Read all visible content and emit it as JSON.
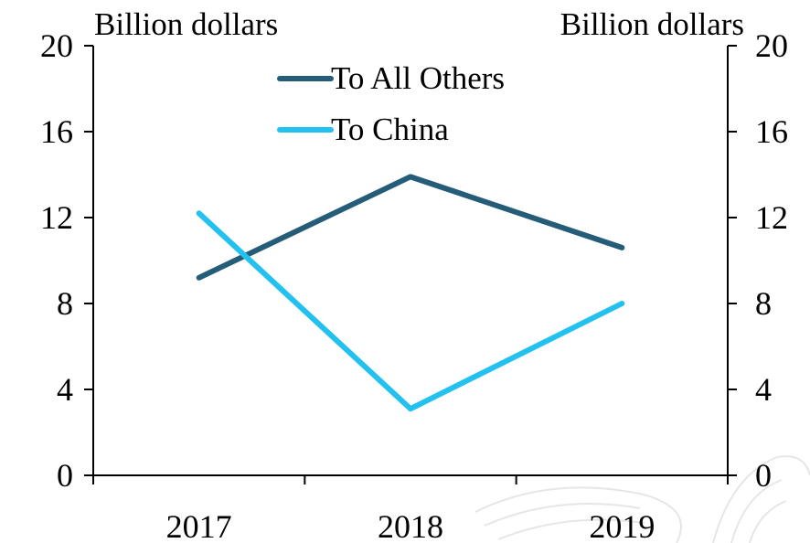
{
  "chart_data": {
    "type": "line",
    "categories": [
      "2017",
      "2018",
      "2019"
    ],
    "series": [
      {
        "name": "To All Others",
        "values": [
          9.2,
          13.9,
          10.6
        ],
        "color": "#255c78"
      },
      {
        "name": "To China",
        "values": [
          12.2,
          3.1,
          8.0
        ],
        "color": "#22c1ef"
      }
    ],
    "left_axis_label": "Billion dollars",
    "right_axis_label": "Billion dollars",
    "ylim": [
      0,
      20
    ],
    "yticks": [
      "0",
      "4",
      "8",
      "12",
      "16",
      "20"
    ],
    "grid": false,
    "legend_position": "top-center"
  }
}
